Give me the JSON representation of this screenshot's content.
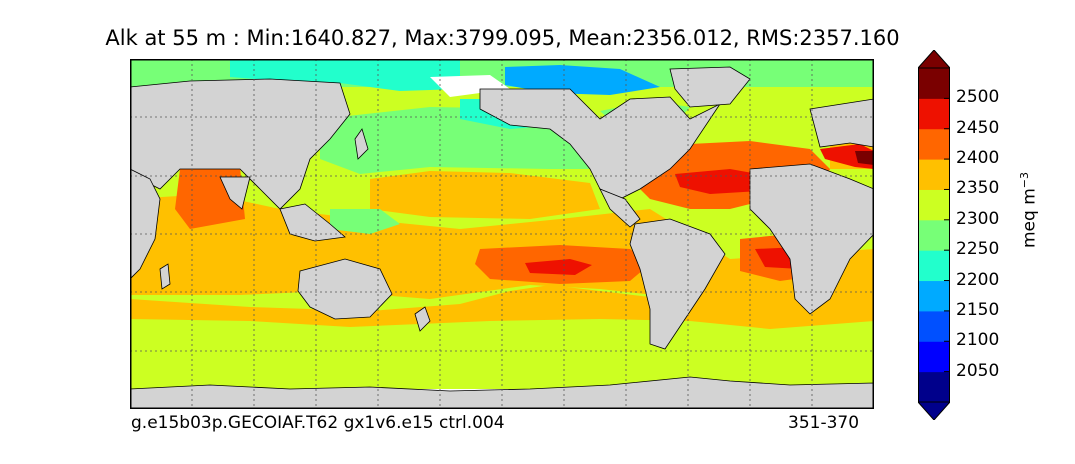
{
  "title": "Alk at 55 m : Min:1640.827, Max:3799.095, Mean:2356.012, RMS:2357.160",
  "footer": {
    "case_name": "g.e15b03p.GECOIAF.T62 gx1v6.e15 ctrl.004",
    "years": "351-370"
  },
  "colorbar": {
    "units_base": "meq m",
    "units_exp": "−3",
    "levels": [
      "2050",
      "2100",
      "2150",
      "2200",
      "2250",
      "2300",
      "2350",
      "2400",
      "2450",
      "2500"
    ],
    "colors": [
      "#00008b",
      "#0000ff",
      "#0050ff",
      "#00aaff",
      "#22ffcc",
      "#77ff77",
      "#ccff22",
      "#ffc000",
      "#ff6600",
      "#ee1100",
      "#7a0000"
    ],
    "extend": "both"
  },
  "map": {
    "land_color": "#d3d3d3",
    "grid": true,
    "grid_style": "dotted"
  }
}
